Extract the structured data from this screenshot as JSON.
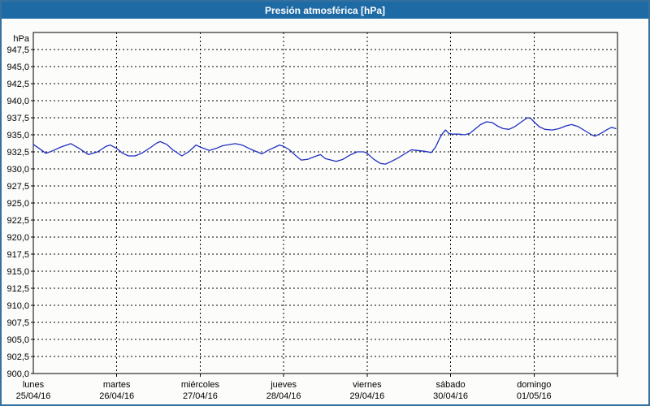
{
  "window": {
    "title": "Presión atmosférica [hPa]",
    "title_bar_color": "#1e6aa5",
    "frame_border_color": "#35709e",
    "background_color": "#fcfdfb"
  },
  "chart_data": {
    "type": "line",
    "title": "Presión atmosférica [hPa]",
    "grid": "dashed-black",
    "legend": "none",
    "line_color": "#1f2fc0",
    "y_axis": {
      "label": "hPa",
      "min": 900.0,
      "max": 950.0,
      "tick_step": 2.5,
      "tick_labels_bottom_to_top": [
        "900,0",
        "902,5",
        "905,0",
        "907,5",
        "910,0",
        "912,5",
        "915,0",
        "917,5",
        "920,0",
        "922,5",
        "925,0",
        "927,5",
        "930,0",
        "932,5",
        "935,0",
        "937,5",
        "940,0",
        "942,5",
        "945,0",
        "947,5"
      ]
    },
    "x_axis": {
      "span_days": 7,
      "ticks": [
        {
          "day": "lunes",
          "date": "25/04/16"
        },
        {
          "day": "martes",
          "date": "26/04/16"
        },
        {
          "day": "miércoles",
          "date": "27/04/16"
        },
        {
          "day": "jueves",
          "date": "28/04/16"
        },
        {
          "day": "viernes",
          "date": "29/04/16"
        },
        {
          "day": "sábado",
          "date": "30/04/16"
        },
        {
          "day": "domingo",
          "date": "01/05/16"
        }
      ]
    },
    "series": [
      {
        "name": "presion_hpa",
        "points_day_value": [
          [
            0.0,
            933.6
          ],
          [
            0.07,
            933.0
          ],
          [
            0.15,
            932.3
          ],
          [
            0.22,
            932.6
          ],
          [
            0.33,
            933.2
          ],
          [
            0.45,
            933.7
          ],
          [
            0.55,
            933.0
          ],
          [
            0.66,
            932.1
          ],
          [
            0.77,
            932.5
          ],
          [
            0.87,
            933.3
          ],
          [
            0.92,
            933.5
          ],
          [
            1.0,
            933.0
          ],
          [
            1.07,
            932.3
          ],
          [
            1.14,
            931.9
          ],
          [
            1.22,
            931.9
          ],
          [
            1.3,
            932.3
          ],
          [
            1.4,
            933.1
          ],
          [
            1.48,
            933.8
          ],
          [
            1.52,
            934.0
          ],
          [
            1.6,
            933.6
          ],
          [
            1.67,
            932.8
          ],
          [
            1.78,
            931.9
          ],
          [
            1.86,
            932.5
          ],
          [
            1.95,
            933.5
          ],
          [
            2.0,
            933.2
          ],
          [
            2.11,
            932.7
          ],
          [
            2.19,
            933.0
          ],
          [
            2.27,
            933.4
          ],
          [
            2.42,
            933.7
          ],
          [
            2.5,
            933.5
          ],
          [
            2.6,
            932.9
          ],
          [
            2.74,
            932.2
          ],
          [
            2.81,
            932.7
          ],
          [
            2.95,
            933.5
          ],
          [
            3.0,
            933.3
          ],
          [
            3.07,
            932.8
          ],
          [
            3.14,
            932.0
          ],
          [
            3.21,
            931.3
          ],
          [
            3.29,
            931.4
          ],
          [
            3.37,
            931.8
          ],
          [
            3.44,
            932.1
          ],
          [
            3.5,
            931.5
          ],
          [
            3.63,
            931.1
          ],
          [
            3.71,
            931.4
          ],
          [
            3.79,
            932.0
          ],
          [
            3.88,
            932.5
          ],
          [
            3.96,
            932.5
          ],
          [
            4.0,
            932.3
          ],
          [
            4.08,
            931.4
          ],
          [
            4.16,
            930.8
          ],
          [
            4.22,
            930.7
          ],
          [
            4.29,
            931.1
          ],
          [
            4.37,
            931.6
          ],
          [
            4.45,
            932.2
          ],
          [
            4.53,
            932.8
          ],
          [
            4.6,
            932.7
          ],
          [
            4.68,
            932.6
          ],
          [
            4.77,
            932.4
          ],
          [
            4.82,
            933.2
          ],
          [
            4.87,
            934.5
          ],
          [
            4.91,
            935.3
          ],
          [
            4.94,
            935.7
          ],
          [
            4.98,
            935.2
          ],
          [
            5.02,
            935.1
          ],
          [
            5.1,
            935.1
          ],
          [
            5.17,
            935.0
          ],
          [
            5.23,
            935.2
          ],
          [
            5.3,
            935.9
          ],
          [
            5.36,
            936.5
          ],
          [
            5.43,
            936.9
          ],
          [
            5.5,
            936.8
          ],
          [
            5.56,
            936.3
          ],
          [
            5.63,
            935.9
          ],
          [
            5.7,
            935.8
          ],
          [
            5.77,
            936.2
          ],
          [
            5.85,
            936.9
          ],
          [
            5.92,
            937.5
          ],
          [
            5.96,
            937.4
          ],
          [
            6.0,
            936.9
          ],
          [
            6.06,
            936.2
          ],
          [
            6.13,
            935.8
          ],
          [
            6.22,
            935.7
          ],
          [
            6.3,
            935.9
          ],
          [
            6.38,
            936.3
          ],
          [
            6.45,
            936.5
          ],
          [
            6.53,
            936.2
          ],
          [
            6.61,
            935.6
          ],
          [
            6.69,
            935.0
          ],
          [
            6.73,
            934.8
          ],
          [
            6.8,
            935.2
          ],
          [
            6.88,
            935.8
          ],
          [
            6.93,
            936.1
          ],
          [
            6.98,
            935.9
          ]
        ]
      }
    ]
  }
}
